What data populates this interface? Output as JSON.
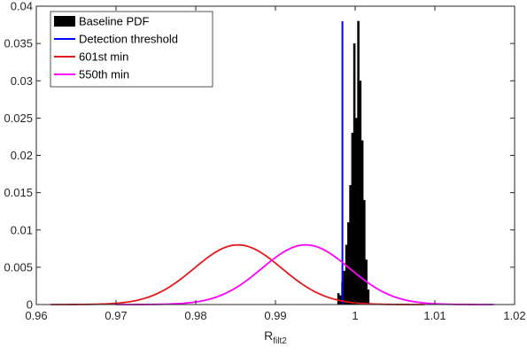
{
  "chart_data": {
    "type": "line",
    "title": "",
    "xlabel": "R",
    "xlabel_subscript": "filt2",
    "ylabel": "",
    "xlim": [
      0.96,
      1.02
    ],
    "ylim": [
      0,
      0.04
    ],
    "x_ticks": [
      0.96,
      0.97,
      0.98,
      0.99,
      1,
      1.01,
      1.02
    ],
    "y_ticks": [
      0,
      0.005,
      0.01,
      0.015,
      0.02,
      0.025,
      0.03,
      0.035,
      0.04
    ],
    "x_tick_labels": [
      "0.96",
      "0.97",
      "0.98",
      "0.99",
      "1",
      "1.01",
      "1.02"
    ],
    "y_tick_labels": [
      "0",
      "0.005",
      "0.01",
      "0.015",
      "0.02",
      "0.025",
      "0.03",
      "0.035",
      "0.04"
    ],
    "grid": false,
    "legend_position": "top-left",
    "series": [
      {
        "name": "Baseline PDF",
        "kind": "histogram",
        "color": "#000000",
        "bins": [
          {
            "x": 0.9979,
            "y": 0.0015
          },
          {
            "x": 0.99815,
            "y": 0.0012
          },
          {
            "x": 0.9984,
            "y": 0.003
          },
          {
            "x": 0.99865,
            "y": 0.0045
          },
          {
            "x": 0.9989,
            "y": 0.008
          },
          {
            "x": 0.99915,
            "y": 0.011
          },
          {
            "x": 0.9994,
            "y": 0.016
          },
          {
            "x": 0.99965,
            "y": 0.023
          },
          {
            "x": 0.9999,
            "y": 0.035
          },
          {
            "x": 1.00015,
            "y": 0.025
          },
          {
            "x": 1.0004,
            "y": 0.038
          },
          {
            "x": 1.00065,
            "y": 0.03
          },
          {
            "x": 1.0009,
            "y": 0.022
          },
          {
            "x": 1.00115,
            "y": 0.014
          },
          {
            "x": 1.0014,
            "y": 0.006
          },
          {
            "x": 1.00165,
            "y": 0.002
          }
        ],
        "bin_width": 0.00025
      },
      {
        "name": "Detection threshold",
        "kind": "vline",
        "color": "#0000ff",
        "x": 0.9984,
        "y_range": [
          0,
          0.038
        ]
      },
      {
        "name": "601st min",
        "kind": "gaussian",
        "color": "#e31a1c",
        "mean": 0.9853,
        "sigma": 0.0055,
        "peak": 0.008,
        "x_range": [
          0.9618,
          1.0087
        ]
      },
      {
        "name": "550th min",
        "kind": "gaussian",
        "color": "#ff00ff",
        "mean": 0.9938,
        "sigma": 0.0055,
        "peak": 0.008,
        "x_range": [
          0.97,
          1.0174
        ]
      }
    ]
  }
}
